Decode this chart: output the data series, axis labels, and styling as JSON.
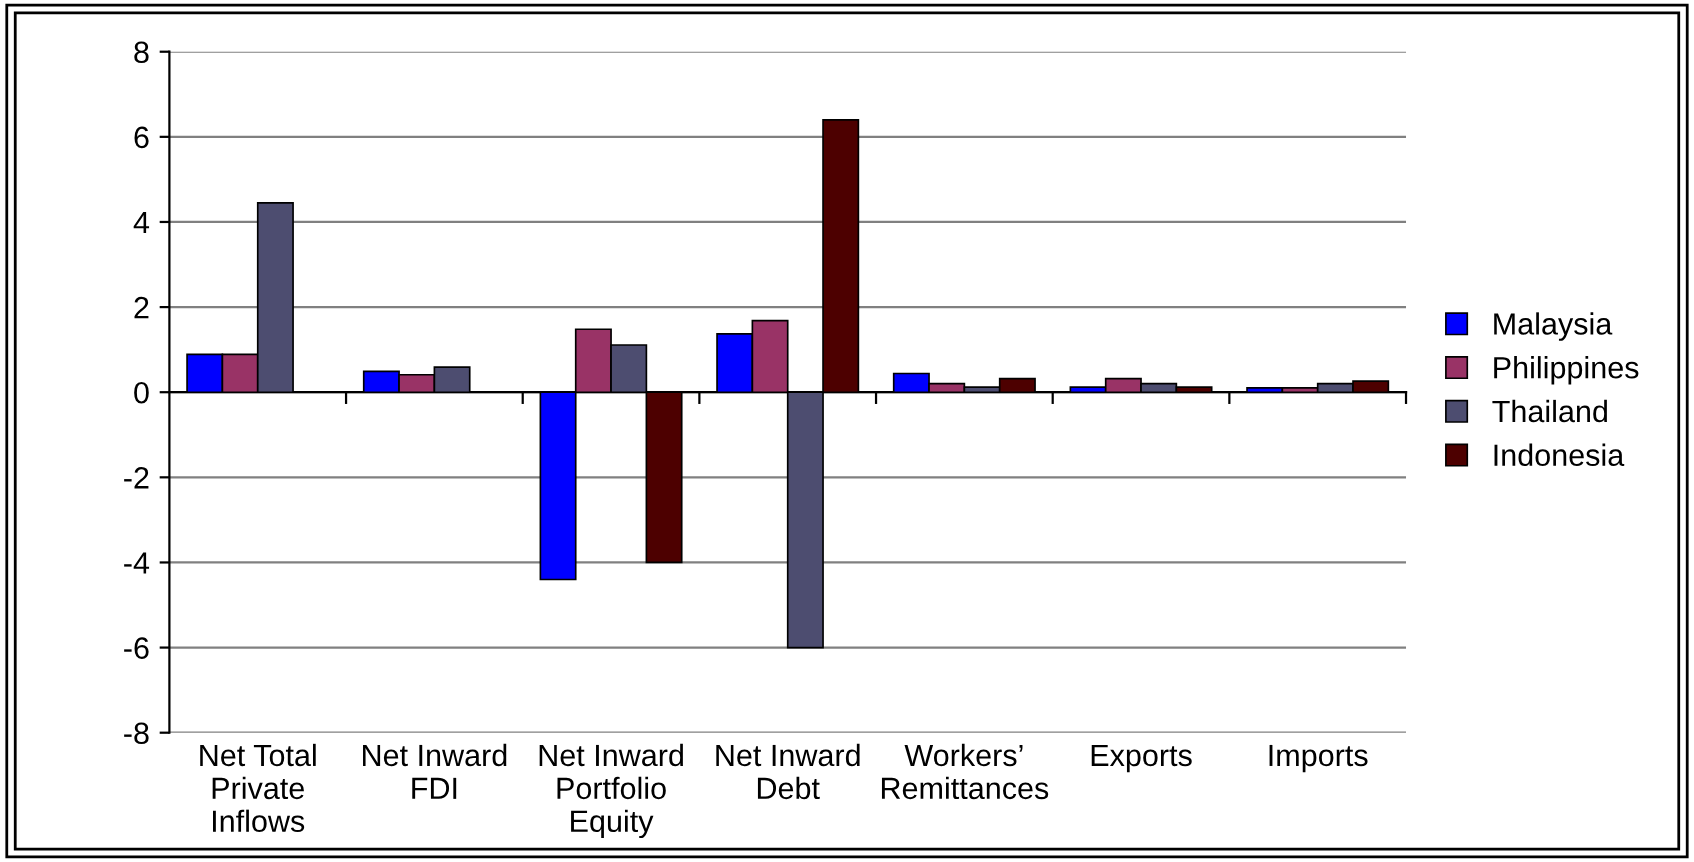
{
  "chart_data": {
    "type": "bar",
    "categories": [
      "Net Total Private Inflows",
      "Net Inward FDI",
      "Net Inward Portfolio Equity",
      "Net Inward Debt",
      "Workers’ Remittances",
      "Exports",
      "Imports"
    ],
    "series": [
      {
        "name": "Malaysia",
        "color": "#0000ff",
        "values": [
          0.89,
          0.49,
          -4.4,
          1.37,
          0.44,
          0.12,
          0.1
        ]
      },
      {
        "name": "Philippines",
        "color": "#993366",
        "values": [
          0.89,
          0.41,
          1.48,
          1.68,
          0.2,
          0.32,
          0.1
        ]
      },
      {
        "name": "Thailand",
        "color": "#4d4d70",
        "values": [
          4.45,
          0.59,
          1.11,
          -6.0,
          0.12,
          0.2,
          0.2
        ]
      },
      {
        "name": "Indonesia",
        "color": "#4d0000",
        "values": [
          null,
          null,
          -4.0,
          6.4,
          0.32,
          0.12,
          0.26
        ]
      }
    ],
    "ylim": [
      -8,
      8
    ],
    "yticks": [
      -8,
      -6,
      -4,
      -2,
      0,
      2,
      4,
      6,
      8
    ],
    "grid": "y",
    "legend": "right"
  }
}
